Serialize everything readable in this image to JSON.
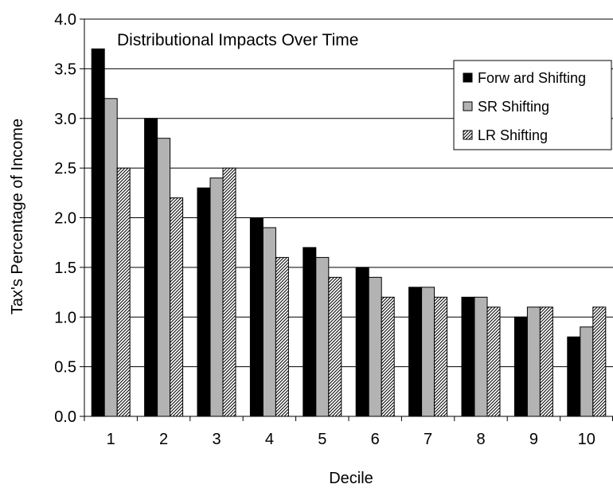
{
  "chart_data": {
    "type": "bar",
    "title": "Distributional Impacts Over Time",
    "xlabel": "Decile",
    "ylabel": "Tax's Percentage of Income",
    "categories": [
      "1",
      "2",
      "3",
      "4",
      "5",
      "6",
      "7",
      "8",
      "9",
      "10"
    ],
    "ylim": [
      0,
      4
    ],
    "yticks": [
      "0.0",
      "0.5",
      "1.0",
      "1.5",
      "2.0",
      "2.5",
      "3.0",
      "3.5",
      "4.0"
    ],
    "grid": true,
    "legend_position": "top-right",
    "series": [
      {
        "name": "Forw ard Shifting",
        "fill": "solid-black",
        "values": [
          3.7,
          3.0,
          2.3,
          2.0,
          1.7,
          1.5,
          1.3,
          1.2,
          1.0,
          0.8
        ]
      },
      {
        "name": "SR Shifting",
        "fill": "solid-gray",
        "values": [
          3.2,
          2.8,
          2.4,
          1.9,
          1.6,
          1.4,
          1.3,
          1.2,
          1.1,
          0.9
        ]
      },
      {
        "name": "LR Shifting",
        "fill": "diagonal-hatch",
        "values": [
          2.5,
          2.2,
          2.5,
          1.6,
          1.4,
          1.2,
          1.2,
          1.1,
          1.1,
          1.1
        ]
      }
    ]
  },
  "colors": {
    "forward": "#000000",
    "sr": "#b3b3b3",
    "lr_hatch": "#000000",
    "lr_bg": "#ffffff",
    "grid": "#000000"
  }
}
